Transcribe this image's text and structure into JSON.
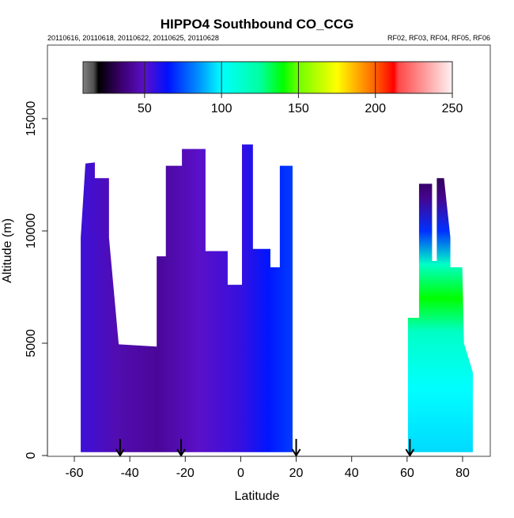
{
  "chart_data": {
    "type": "heatmap",
    "title": "HIPPO4 Southbound CO_CCG",
    "subtitle_left": "20110616, 20110618, 20110622, 20110625, 20110628",
    "subtitle_right": "RF02, RF03, RF04, RF05, RF06",
    "xlabel": "Latitude",
    "ylabel": "Altitude (m)",
    "xlim": [
      -70,
      90
    ],
    "ylim": [
      0,
      18300
    ],
    "xticks": [
      -60,
      -40,
      -20,
      0,
      20,
      40,
      60,
      80
    ],
    "yticks": [
      0,
      5000,
      10000,
      15000
    ],
    "colorbar": {
      "range": [
        10,
        250
      ],
      "ticks": [
        50,
        100,
        150,
        200,
        250
      ],
      "stops": [
        [
          10,
          "#808080"
        ],
        [
          17,
          "#505050"
        ],
        [
          20,
          "#000000"
        ],
        [
          35,
          "#3c0070"
        ],
        [
          50,
          "#5a10c8"
        ],
        [
          65,
          "#0010ff"
        ],
        [
          85,
          "#0090ff"
        ],
        [
          100,
          "#00ffff"
        ],
        [
          125,
          "#00ffa0"
        ],
        [
          140,
          "#00ff00"
        ],
        [
          150,
          "#70ff00"
        ],
        [
          175,
          "#ffff00"
        ],
        [
          200,
          "#ff6000"
        ],
        [
          212,
          "#ff0000"
        ],
        [
          215,
          "#ff4848"
        ],
        [
          250,
          "#fff2f2"
        ]
      ]
    },
    "regions": [
      {
        "name": "southern-pacific-profile",
        "outline": [
          [
            -57.7,
            150
          ],
          [
            -57.7,
            9700
          ],
          [
            -56,
            13000
          ],
          [
            -52.6,
            13050
          ],
          [
            -52.6,
            12350
          ],
          [
            -47.5,
            12350
          ],
          [
            -47.5,
            9700
          ],
          [
            -44,
            4950
          ],
          [
            -30.3,
            4850
          ],
          [
            -30.3,
            8870
          ],
          [
            -27,
            8870
          ],
          [
            -27,
            12900
          ],
          [
            -21.2,
            12900
          ],
          [
            -21.2,
            13650
          ],
          [
            -12.7,
            13650
          ],
          [
            -12.7,
            9100
          ],
          [
            -4.7,
            9100
          ],
          [
            -4.7,
            7600
          ],
          [
            0.45,
            7600
          ],
          [
            0.45,
            13850
          ],
          [
            4.4,
            13850
          ],
          [
            4.4,
            9200
          ],
          [
            10.7,
            9200
          ],
          [
            10.7,
            8380
          ],
          [
            14.1,
            8380
          ],
          [
            14.1,
            12900
          ],
          [
            18.7,
            12900
          ],
          [
            18.7,
            150
          ]
        ],
        "gradient_axis": "latitude",
        "values": [
          [
            -58,
            55
          ],
          [
            -45,
            46
          ],
          [
            -30,
            42
          ],
          [
            -15,
            50
          ],
          [
            0,
            56
          ],
          [
            10,
            66
          ],
          [
            19,
            72
          ]
        ]
      },
      {
        "name": "northern-pacific-profile",
        "outline": [
          [
            60.3,
            150
          ],
          [
            60.3,
            6130
          ],
          [
            64.3,
            6130
          ],
          [
            64.3,
            12100
          ],
          [
            69,
            12100
          ],
          [
            69,
            8660
          ],
          [
            70.7,
            8660
          ],
          [
            70.7,
            12350
          ],
          [
            73.3,
            12350
          ],
          [
            75.6,
            9700
          ],
          [
            75.6,
            8380
          ],
          [
            79.9,
            8380
          ],
          [
            80.5,
            5000
          ],
          [
            83.7,
            3700
          ],
          [
            83.7,
            150
          ]
        ],
        "gradient_axis": "altitude",
        "values": [
          [
            0,
            95
          ],
          [
            3000,
            100
          ],
          [
            5500,
            115
          ],
          [
            7000,
            140
          ],
          [
            8500,
            115
          ],
          [
            10000,
            70
          ],
          [
            11500,
            40
          ],
          [
            12400,
            32
          ]
        ]
      }
    ],
    "flight_markers": [
      -43.5,
      -21.5,
      20,
      61
    ]
  }
}
